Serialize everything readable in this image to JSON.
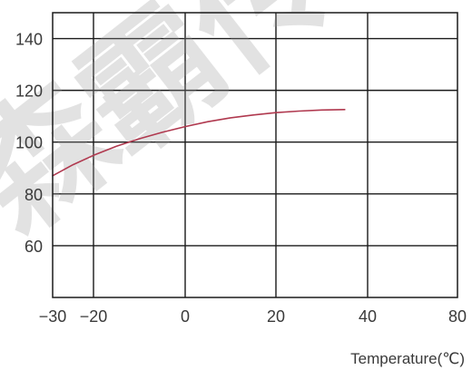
{
  "chart_data": {
    "type": "line",
    "title": "",
    "xlabel": "Temperature(℃)",
    "ylabel": "",
    "xlim": [
      -30,
      80
    ],
    "ylim": [
      40,
      150
    ],
    "xticks": [
      -30,
      -20,
      0,
      20,
      40,
      80
    ],
    "yticks": [
      60,
      80,
      100,
      120,
      140
    ],
    "vgrid": [
      -20,
      0,
      20,
      40
    ],
    "hgrid": [
      60,
      80,
      100,
      120,
      140
    ],
    "grid": true,
    "legend": "none",
    "series": [
      {
        "color": "#b0394f",
        "x": [
          -30,
          -25,
          -20,
          -15,
          -10,
          -5,
          0,
          5,
          10,
          15,
          20,
          25,
          30,
          35
        ],
        "y": [
          87,
          91.3,
          94.9,
          98.4,
          101.3,
          103.8,
          106,
          107.9,
          109.4,
          110.5,
          111.4,
          112,
          112.4,
          112.6
        ]
      }
    ]
  },
  "watermark": "森霸传",
  "colors": {
    "grid": "#1a1a1a",
    "curve": "#b0394f"
  }
}
